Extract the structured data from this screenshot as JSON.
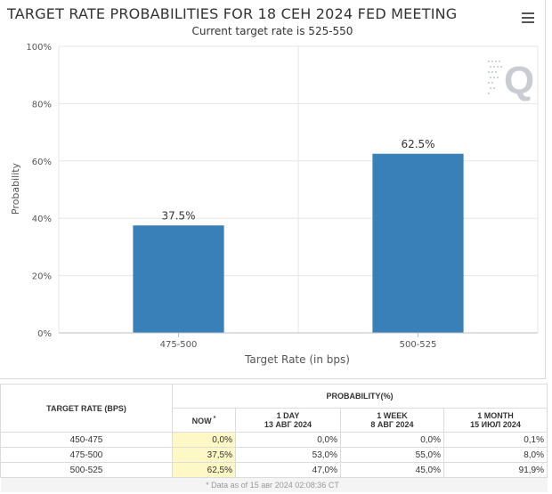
{
  "chart": {
    "title": "TARGET RATE PROBABILITIES FOR 18 СЕН 2024 FED MEETING",
    "subtitle": "Current target rate is 525-550",
    "watermark": "Q",
    "menu_icon": "hamburger-menu-icon"
  },
  "chart_data": {
    "type": "bar",
    "categories": [
      "475-500",
      "500-525"
    ],
    "values": [
      37.5,
      62.5
    ],
    "data_labels": [
      "37.5%",
      "62.5%"
    ],
    "xlabel": "Target Rate (in bps)",
    "ylabel": "Probability",
    "ylim": [
      0,
      100
    ],
    "yticks": [
      "0%",
      "20%",
      "40%",
      "60%",
      "80%",
      "100%"
    ],
    "ytick_values": [
      0,
      20,
      40,
      60,
      80,
      100
    ],
    "grid": true,
    "bar_color": "#3a80b8"
  },
  "table": {
    "header_rate": "TARGET RATE (BPS)",
    "header_probability": "PROBABILITY(%)",
    "columns": [
      {
        "line1": "NOW",
        "line2": "",
        "sup": "*"
      },
      {
        "line1": "1 DAY",
        "line2": "13 АВГ 2024",
        "sup": ""
      },
      {
        "line1": "1 WEEK",
        "line2": "8 АВГ 2024",
        "sup": ""
      },
      {
        "line1": "1 MONTH",
        "line2": "15 ИЮЛ 2024",
        "sup": ""
      }
    ],
    "rows": [
      {
        "rate": "450-475",
        "values": [
          "0,0%",
          "0,0%",
          "0,0%",
          "0,1%"
        ]
      },
      {
        "rate": "475-500",
        "values": [
          "37,5%",
          "53,0%",
          "55,0%",
          "8,0%"
        ]
      },
      {
        "rate": "500-525",
        "values": [
          "62,5%",
          "47,0%",
          "45,0%",
          "91,9%"
        ]
      }
    ],
    "footnote": "* Data as of 15 авг 2024 02:08:36 CT"
  }
}
